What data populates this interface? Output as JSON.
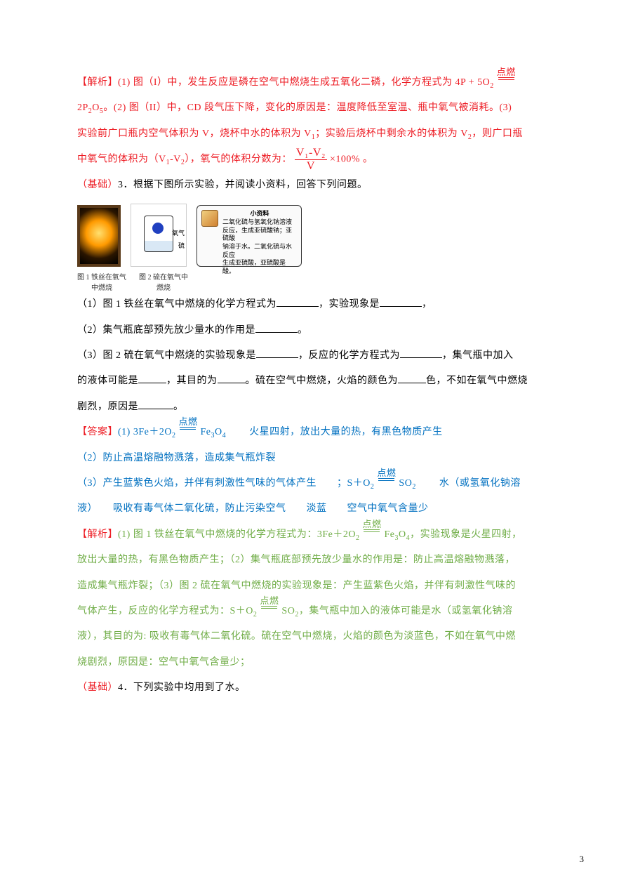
{
  "colors": {
    "text_black": "#000000",
    "text_red": "#ed1c24",
    "text_blue": "#0070c0",
    "text_green": "#70ad47",
    "bg": "#ffffff"
  },
  "font": {
    "family": "SimSun",
    "body_size_pt": 10.5
  },
  "ana_head": "【解析】",
  "ana1_a": "(1) 图（I）中，发生反应是磷在空气中燃烧生成五氧化二磷，化学方程式为 4P + 5O",
  "ana1_a_sub": "2",
  "ignite": "点燃",
  "ana1_b1": "2P",
  "ana1_b_sub1": "2",
  "ana1_b2": "O",
  "ana1_b_sub2": "5",
  "ana1_b3": "。(2) 图（II）中，CD 段气压下降，变化的原因是：温度降低至室温、瓶中氧气被消耗。(3)",
  "ana1_c": "实验前广口瓶内空气体积为 V，烧杯中水的体积为 V",
  "ana1_c_sub": "1",
  "ana1_c2": "；实验后烧杯中剩余水的体积为 V",
  "ana1_c2_sub": "2",
  "ana1_c3": "，则广口瓶",
  "ana1_d": "中氧气的体积为（V",
  "ana1_d_sub1": "1",
  "ana1_d2": "-V",
  "ana1_d_sub2": "2",
  "ana1_d3": "），氧气的体积分数为：",
  "frac_num": "V₁-V₂",
  "frac_den": "V",
  "frac_tail": "×100% 。",
  "q3_tag": "（基础）",
  "q3_head": "3．根据下图所示实验，并阅读小资料，回答下列问题。",
  "fig1_cap": "图 1 铁丝在氧气中燃烧",
  "fig2_cap": "图 2 硫在氧气中燃烧",
  "fig2_lbl1": "氧气",
  "fig2_lbl2": "硫",
  "card_title": "小资料",
  "card_body1": "二氧化硫与氢氧化钠溶液",
  "card_body2": "反应，生成亚硫酸钠；亚硫酸",
  "card_body3": "钠溶于水。二氧化硫与水反应",
  "card_body4": "生成亚硫酸，亚硫酸是酸。",
  "q3_1": "（1）图 1 铁丝在氧气中燃烧的化学方程式为",
  "q3_1b": "，实验现象是",
  "q3_1c": "，",
  "q3_2": "（2）集气瓶底部预先放少量水的作用是",
  "q3_2b": "。",
  "q3_3a": "（3）图 2 硫在氧气中燃烧的实验现象是",
  "q3_3b": "，反应的化学方程式为",
  "q3_3c": "，集气瓶中加入",
  "q3_3d": "的液体可能是",
  "q3_3e": "，其目的为",
  "q3_3f": "。硫在空气中燃烧，火焰的颜色为",
  "q3_3g": "色，不如在氧气中燃烧",
  "q3_3h": "剧烈，原因是",
  "q3_3i": "。",
  "ans_head": "【答案】",
  "ans1_a": "(1) 3Fe＋2O",
  "ans1_a_sub": "2",
  "ans1_b": "Fe",
  "ans1_b_sub1": "3",
  "ans1_b2": "O",
  "ans1_b_sub2": "4",
  "ans1_c": "　　火星四射，放出大量的热，有黑色物质产生",
  "ans2": "（2）防止高温熔融物溅落，造成集气瓶炸裂",
  "ans3_a": "（3）产生蓝紫色火焰，并伴有刺激性气味的气体产生　　；S＋O",
  "ans3_a_sub": "2",
  "ans3_b": "SO",
  "ans3_b_sub": "2",
  "ans3_c": "　　水（或氢氧化钠溶",
  "ans3_d": "液）　　吸收有毒气体二氧化硫，防止污染空气　　淡蓝　　空气中氧气含量少",
  "exp_a": "(1) 图 1 铁丝在氧气中燃烧的化学方程式为：3Fe＋2O",
  "exp_a_sub": "2",
  "exp_b": "Fe",
  "exp_b_sub1": "3",
  "exp_b2": "O",
  "exp_b_sub2": "4",
  "exp_c": "，实验现象是火星四射，",
  "exp_d": "放出大量的热，有黑色物质产生；（2）集气瓶底部预先放少量水的作用是：防止高温熔融物溅落，",
  "exp_e": "造成集气瓶炸裂；（3）图 2 硫在氧气中燃烧的实验现象是：产生蓝紫色火焰，并伴有刺激性气味的",
  "exp_f": "气体产生，反应的化学方程式为：S＋O",
  "exp_f_sub": "2",
  "exp_g": "SO",
  "exp_g_sub": "2",
  "exp_h": "，集气瓶中加入的液体可能是水（或氢氧化钠溶",
  "exp_i": "液），其目的为: 吸收有毒气体二氧化硫。硫在空气中燃烧，火焰的颜色为淡蓝色，不如在氧气中燃",
  "exp_j": "烧剧烈，原因是：空气中氧气含量少；",
  "q4_tag": "（基础）",
  "q4_head": "4．下列实验中均用到了水。",
  "page_num": "3"
}
